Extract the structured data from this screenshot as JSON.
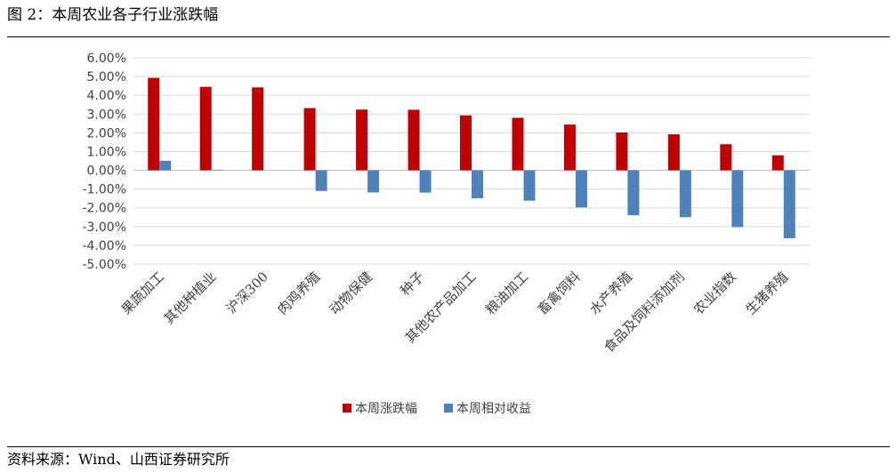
{
  "figure_title": "图 2：本周农业各子行业涨跌幅",
  "source_note": "资料来源：Wind、山西证券研究所",
  "chart_data": {
    "type": "bar",
    "categories": [
      "果蔬加工",
      "其他种植业",
      "沪深300",
      "肉鸡养殖",
      "动物保健",
      "种子",
      "其他农产品加工",
      "粮油加工",
      "畜禽饲料",
      "水产养殖",
      "食品及饲料添加剂",
      "农业指数",
      "生猪养殖"
    ],
    "series": [
      {
        "name": "本周涨跌幅",
        "color": "#C00000",
        "values": [
          4.93,
          4.45,
          4.42,
          3.32,
          3.24,
          3.23,
          2.93,
          2.8,
          2.44,
          2.02,
          1.92,
          1.39,
          0.8
        ]
      },
      {
        "name": "本周相对收益",
        "color": "#4F81BD",
        "values": [
          0.51,
          0.03,
          0.0,
          -1.1,
          -1.18,
          -1.19,
          -1.49,
          -1.62,
          -1.98,
          -2.4,
          -2.5,
          -3.03,
          -3.62
        ]
      }
    ],
    "ylim": [
      -5,
      6
    ],
    "ytick_step": 1,
    "ytick_labels": [
      "6.00%",
      "5.00%",
      "4.00%",
      "3.00%",
      "2.00%",
      "1.00%",
      "0.00%",
      "-1.00%",
      "-2.00%",
      "-3.00%",
      "-4.00%",
      "-5.00%"
    ],
    "grid": true,
    "legend_position": "bottom"
  }
}
